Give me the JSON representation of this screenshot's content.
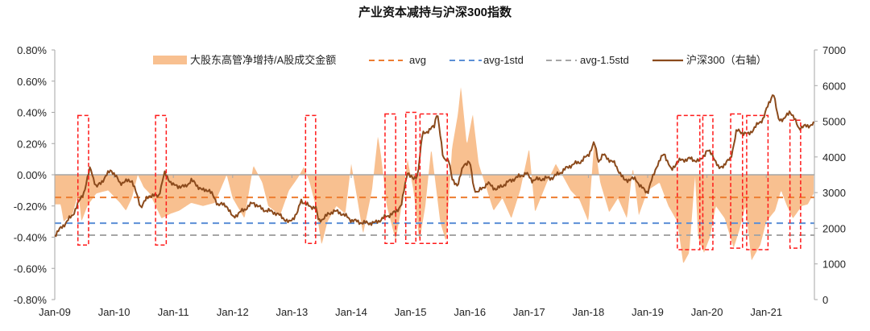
{
  "chart_data": {
    "type": "area+line",
    "title": "产业资本减持与沪深300指数",
    "colors": {
      "area": "#f8c090",
      "avg": "#ed7d31",
      "avg_1std": "#5b8fd6",
      "avg_1_5std": "#a6a6a6",
      "index_line": "#8b4a1c",
      "box": "#ff1a1a",
      "axis": "#a6a6a6"
    },
    "legend": {
      "placement": "top",
      "items": [
        "大股东高管净增持/A股成交金额",
        "avg",
        "avg-1std",
        "avg-1.5std",
        "沪深300（右轴）"
      ]
    },
    "x_ticks": [
      "Jan-09",
      "Jan-10",
      "Jan-11",
      "Jan-12",
      "Jan-13",
      "Jan-14",
      "Jan-15",
      "Jan-16",
      "Jan-17",
      "Jan-18",
      "Jan-19",
      "Jan-20",
      "Jan-21"
    ],
    "x_range_years": [
      2009.0,
      2021.8
    ],
    "y_left": {
      "ticks": [
        "0.80%",
        "0.60%",
        "0.40%",
        "0.20%",
        "0.00%",
        "-0.20%",
        "-0.40%",
        "-0.60%",
        "-0.80%"
      ],
      "range_pct": [
        -0.8,
        0.8
      ]
    },
    "y_right": {
      "ticks": [
        "7000",
        "6000",
        "5000",
        "4000",
        "3000",
        "2000",
        "1000",
        "0"
      ],
      "range": [
        0,
        7000
      ]
    },
    "reference_lines_pct": {
      "avg": -0.145,
      "avg_1std": -0.31,
      "avg_1_5std": -0.387
    },
    "net_increase_ratio_pct": [
      [
        2009.0,
        -0.19
      ],
      [
        2009.1,
        -0.19
      ],
      [
        2009.15,
        -0.3
      ],
      [
        2009.3,
        -0.25
      ],
      [
        2009.4,
        -0.12
      ],
      [
        2009.45,
        -0.3
      ],
      [
        2009.55,
        -0.2
      ],
      [
        2009.7,
        -0.12
      ],
      [
        2009.9,
        -0.1
      ],
      [
        2010.1,
        -0.18
      ],
      [
        2010.2,
        -0.23
      ],
      [
        2010.3,
        -0.15
      ],
      [
        2010.4,
        0.0
      ],
      [
        2010.5,
        -0.08
      ],
      [
        2010.6,
        -0.12
      ],
      [
        2010.8,
        -0.28
      ],
      [
        2010.95,
        -0.25
      ],
      [
        2011.1,
        -0.23
      ],
      [
        2011.3,
        -0.18
      ],
      [
        2011.5,
        -0.2
      ],
      [
        2011.7,
        -0.18
      ],
      [
        2011.9,
        0.0
      ],
      [
        2012.0,
        -0.15
      ],
      [
        2012.2,
        -0.28
      ],
      [
        2012.35,
        0.06
      ],
      [
        2012.5,
        -0.05
      ],
      [
        2012.6,
        -0.2
      ],
      [
        2012.8,
        -0.26
      ],
      [
        2012.95,
        -0.1
      ],
      [
        2013.1,
        -0.02
      ],
      [
        2013.2,
        0.05
      ],
      [
        2013.3,
        -0.05
      ],
      [
        2013.4,
        -0.2
      ],
      [
        2013.5,
        -0.45
      ],
      [
        2013.6,
        -0.3
      ],
      [
        2013.75,
        -0.2
      ],
      [
        2013.9,
        -0.25
      ],
      [
        2014.0,
        0.07
      ],
      [
        2014.1,
        -0.15
      ],
      [
        2014.2,
        -0.38
      ],
      [
        2014.35,
        -0.1
      ],
      [
        2014.45,
        0.25
      ],
      [
        2014.5,
        0.13
      ],
      [
        2014.6,
        -0.2
      ],
      [
        2014.75,
        -0.42
      ],
      [
        2014.85,
        -0.2
      ],
      [
        2014.95,
        0.1
      ],
      [
        2015.05,
        -0.1
      ],
      [
        2015.15,
        -0.43
      ],
      [
        2015.25,
        -0.2
      ],
      [
        2015.35,
        0.17
      ],
      [
        2015.5,
        -0.3
      ],
      [
        2015.6,
        -0.43
      ],
      [
        2015.7,
        0.17
      ],
      [
        2015.8,
        0.39
      ],
      [
        2015.85,
        0.57
      ],
      [
        2015.95,
        0.19
      ],
      [
        2016.05,
        0.39
      ],
      [
        2016.15,
        0.07
      ],
      [
        2016.25,
        -0.05
      ],
      [
        2016.4,
        -0.23
      ],
      [
        2016.55,
        -0.15
      ],
      [
        2016.7,
        -0.28
      ],
      [
        2016.85,
        -0.1
      ],
      [
        2017.0,
        0.17
      ],
      [
        2017.1,
        -0.24
      ],
      [
        2017.3,
        -0.05
      ],
      [
        2017.45,
        0.07
      ],
      [
        2017.6,
        -0.03
      ],
      [
        2017.7,
        -0.1
      ],
      [
        2017.85,
        -0.16
      ],
      [
        2018.0,
        -0.3
      ],
      [
        2018.1,
        0.22
      ],
      [
        2018.2,
        -0.05
      ],
      [
        2018.35,
        -0.24
      ],
      [
        2018.5,
        -0.15
      ],
      [
        2018.65,
        -0.28
      ],
      [
        2018.75,
        0.05
      ],
      [
        2018.85,
        -0.26
      ],
      [
        2019.0,
        -0.1
      ],
      [
        2019.2,
        -0.05
      ],
      [
        2019.35,
        -0.2
      ],
      [
        2019.5,
        -0.3
      ],
      [
        2019.6,
        -0.57
      ],
      [
        2019.7,
        -0.5
      ],
      [
        2019.8,
        0.0
      ],
      [
        2019.85,
        -0.4
      ],
      [
        2019.95,
        -0.5
      ],
      [
        2020.05,
        -0.4
      ],
      [
        2020.15,
        -0.2
      ],
      [
        2020.3,
        -0.28
      ],
      [
        2020.45,
        -0.47
      ],
      [
        2020.55,
        -0.35
      ],
      [
        2020.65,
        -0.2
      ],
      [
        2020.75,
        -0.55
      ],
      [
        2020.9,
        -0.45
      ],
      [
        2021.0,
        -0.3
      ],
      [
        2021.15,
        -0.23
      ],
      [
        2021.25,
        -0.1
      ],
      [
        2021.35,
        -0.2
      ],
      [
        2021.45,
        -0.28
      ],
      [
        2021.6,
        -0.2
      ],
      [
        2021.7,
        -0.19
      ],
      [
        2021.8,
        -0.12
      ]
    ],
    "csi300": [
      [
        2009.0,
        1806
      ],
      [
        2009.3,
        2370
      ],
      [
        2009.5,
        3050
      ],
      [
        2009.6,
        3720
      ],
      [
        2009.7,
        3130
      ],
      [
        2009.85,
        3430
      ],
      [
        2009.95,
        3650
      ],
      [
        2010.1,
        3270
      ],
      [
        2010.3,
        3350
      ],
      [
        2010.45,
        2600
      ],
      [
        2010.6,
        2930
      ],
      [
        2010.75,
        2900
      ],
      [
        2010.85,
        3540
      ],
      [
        2011.0,
        3200
      ],
      [
        2011.2,
        3160
      ],
      [
        2011.3,
        3350
      ],
      [
        2011.5,
        3050
      ],
      [
        2011.6,
        3090
      ],
      [
        2011.75,
        2680
      ],
      [
        2011.9,
        2640
      ],
      [
        2012.0,
        2300
      ],
      [
        2012.2,
        2530
      ],
      [
        2012.35,
        2720
      ],
      [
        2012.5,
        2530
      ],
      [
        2012.7,
        2450
      ],
      [
        2012.85,
        2300
      ],
      [
        2012.95,
        2150
      ],
      [
        2013.1,
        2450
      ],
      [
        2013.15,
        2790
      ],
      [
        2013.3,
        2600
      ],
      [
        2013.4,
        2600
      ],
      [
        2013.45,
        2190
      ],
      [
        2013.7,
        2490
      ],
      [
        2013.85,
        2410
      ],
      [
        2014.0,
        2230
      ],
      [
        2014.2,
        2150
      ],
      [
        2014.4,
        2150
      ],
      [
        2014.6,
        2340
      ],
      [
        2014.75,
        2450
      ],
      [
        2014.85,
        2680
      ],
      [
        2014.95,
        3590
      ],
      [
        2015.05,
        3350
      ],
      [
        2015.12,
        3500
      ],
      [
        2015.2,
        4630
      ],
      [
        2015.4,
        4850
      ],
      [
        2015.45,
        5300
      ],
      [
        2015.55,
        3950
      ],
      [
        2015.64,
        3950
      ],
      [
        2015.7,
        3360
      ],
      [
        2015.8,
        3210
      ],
      [
        2015.9,
        3810
      ],
      [
        2016.0,
        3850
      ],
      [
        2016.07,
        3130
      ],
      [
        2016.13,
        3000
      ],
      [
        2016.3,
        3260
      ],
      [
        2016.45,
        3090
      ],
      [
        2016.7,
        3350
      ],
      [
        2016.95,
        3540
      ],
      [
        2017.05,
        3350
      ],
      [
        2017.4,
        3420
      ],
      [
        2017.7,
        3760
      ],
      [
        2017.88,
        3880
      ],
      [
        2018.0,
        4060
      ],
      [
        2018.1,
        4400
      ],
      [
        2018.17,
        3880
      ],
      [
        2018.25,
        4060
      ],
      [
        2018.45,
        3800
      ],
      [
        2018.6,
        3350
      ],
      [
        2018.8,
        3390
      ],
      [
        2018.88,
        3160
      ],
      [
        2019.0,
        3010
      ],
      [
        2019.15,
        3740
      ],
      [
        2019.28,
        4110
      ],
      [
        2019.4,
        3610
      ],
      [
        2019.5,
        3880
      ],
      [
        2019.7,
        3950
      ],
      [
        2019.88,
        3880
      ],
      [
        2020.0,
        4180
      ],
      [
        2020.1,
        4060
      ],
      [
        2020.2,
        3660
      ],
      [
        2020.4,
        3950
      ],
      [
        2020.5,
        4740
      ],
      [
        2020.7,
        4630
      ],
      [
        2020.95,
        5080
      ],
      [
        2021.05,
        5530
      ],
      [
        2021.12,
        5800
      ],
      [
        2021.2,
        5080
      ],
      [
        2021.3,
        5040
      ],
      [
        2021.4,
        5300
      ],
      [
        2021.55,
        4810
      ],
      [
        2021.8,
        4920
      ]
    ],
    "highlight_boxes": [
      {
        "from": 2009.39,
        "to": 2009.57,
        "top_pct": 0.38,
        "bottom_pct": -0.45
      },
      {
        "from": 2010.7,
        "to": 2010.88,
        "top_pct": 0.38,
        "bottom_pct": -0.45
      },
      {
        "from": 2013.23,
        "to": 2013.4,
        "top_pct": 0.38,
        "bottom_pct": -0.44
      },
      {
        "from": 2014.57,
        "to": 2014.75,
        "top_pct": 0.39,
        "bottom_pct": -0.44
      },
      {
        "from": 2014.92,
        "to": 2015.09,
        "top_pct": 0.4,
        "bottom_pct": -0.44
      },
      {
        "from": 2015.16,
        "to": 2015.62,
        "top_pct": 0.39,
        "bottom_pct": -0.44
      },
      {
        "from": 2019.5,
        "to": 2019.88,
        "top_pct": 0.38,
        "bottom_pct": -0.48
      },
      {
        "from": 2019.93,
        "to": 2020.1,
        "top_pct": 0.38,
        "bottom_pct": -0.48
      },
      {
        "from": 2020.4,
        "to": 2020.6,
        "top_pct": 0.39,
        "bottom_pct": -0.47
      },
      {
        "from": 2020.67,
        "to": 2021.03,
        "top_pct": 0.38,
        "bottom_pct": -0.48
      },
      {
        "from": 2021.4,
        "to": 2021.58,
        "top_pct": 0.35,
        "bottom_pct": -0.47
      }
    ]
  }
}
